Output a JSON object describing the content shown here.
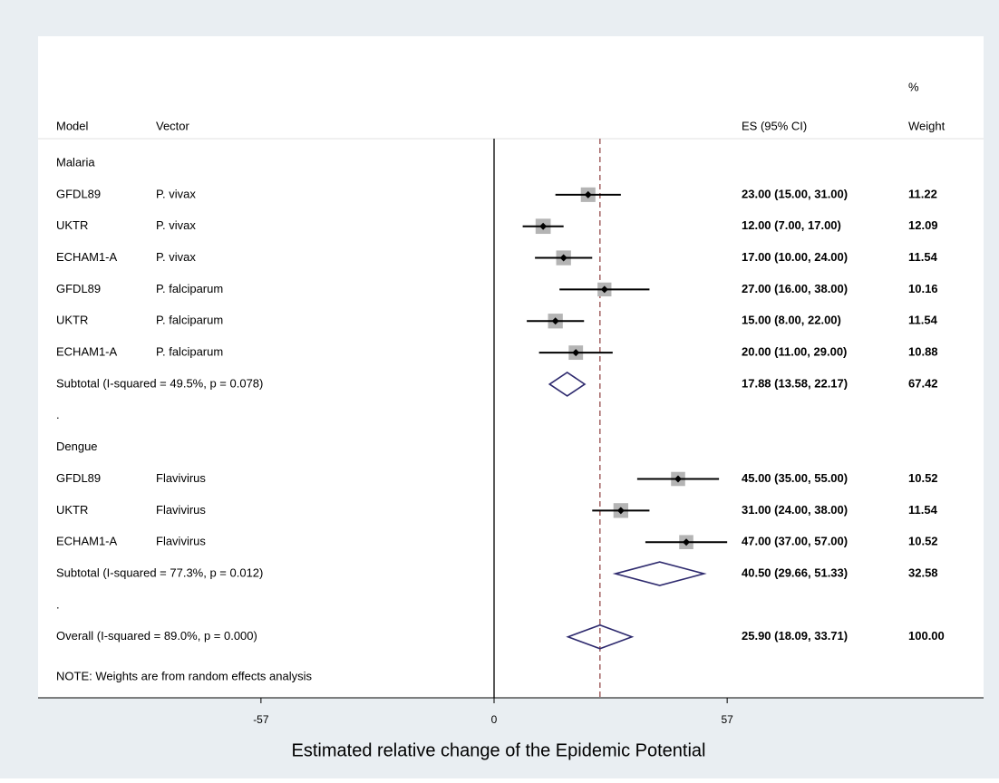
{
  "chart_data": {
    "type": "forest",
    "headers": {
      "model": "Model",
      "vector": "Vector",
      "es": "ES (95% CI)",
      "weight_top": "%",
      "weight": "Weight"
    },
    "groups": [
      {
        "name": "Malaria",
        "studies": [
          {
            "model": "GFDL89",
            "vector": "P. vivax",
            "es": 23,
            "lo": 15,
            "hi": 31,
            "es_label": "23.00 (15.00, 31.00)",
            "weight": 11.22,
            "weight_label": "11.22"
          },
          {
            "model": "UKTR",
            "vector": "P. vivax",
            "es": 12,
            "lo": 7,
            "hi": 17,
            "es_label": "12.00 (7.00, 17.00)",
            "weight": 12.09,
            "weight_label": "12.09"
          },
          {
            "model": "ECHAM1-A",
            "vector": "P. vivax",
            "es": 17,
            "lo": 10,
            "hi": 24,
            "es_label": "17.00 (10.00, 24.00)",
            "weight": 11.54,
            "weight_label": "11.54"
          },
          {
            "model": "GFDL89",
            "vector": "P. falciparum",
            "es": 27,
            "lo": 16,
            "hi": 38,
            "es_label": "27.00 (16.00, 38.00)",
            "weight": 10.16,
            "weight_label": "10.16"
          },
          {
            "model": "UKTR",
            "vector": "P. falciparum",
            "es": 15,
            "lo": 8,
            "hi": 22,
            "es_label": "15.00 (8.00, 22.00)",
            "weight": 11.54,
            "weight_label": "11.54"
          },
          {
            "model": "ECHAM1-A",
            "vector": "P. falciparum",
            "es": 20,
            "lo": 11,
            "hi": 29,
            "es_label": "20.00 (11.00, 29.00)",
            "weight": 10.88,
            "weight_label": "10.88"
          }
        ],
        "subtotal": {
          "label": "Subtotal  (I-squared = 49.5%, p = 0.078)",
          "es": 17.88,
          "lo": 13.58,
          "hi": 22.17,
          "es_label": "17.88 (13.58, 22.17)",
          "weight": 67.42,
          "weight_label": "67.42"
        },
        "separator": "."
      },
      {
        "name": "Dengue",
        "studies": [
          {
            "model": "GFDL89",
            "vector": "Flavivirus",
            "es": 45,
            "lo": 35,
            "hi": 55,
            "es_label": "45.00 (35.00, 55.00)",
            "weight": 10.52,
            "weight_label": "10.52"
          },
          {
            "model": "UKTR",
            "vector": "Flavivirus",
            "es": 31,
            "lo": 24,
            "hi": 38,
            "es_label": "31.00 (24.00, 38.00)",
            "weight": 11.54,
            "weight_label": "11.54"
          },
          {
            "model": "ECHAM1-A",
            "vector": "Flavivirus",
            "es": 47,
            "lo": 37,
            "hi": 57,
            "es_label": "47.00 (37.00, 57.00)",
            "weight": 10.52,
            "weight_label": "10.52"
          }
        ],
        "subtotal": {
          "label": "Subtotal  (I-squared = 77.3%, p = 0.012)",
          "es": 40.5,
          "lo": 29.66,
          "hi": 51.33,
          "es_label": "40.50 (29.66, 51.33)",
          "weight": 32.58,
          "weight_label": "32.58"
        },
        "separator": "."
      }
    ],
    "overall": {
      "label": "Overall  (I-squared = 89.0%, p = 0.000)",
      "es": 25.9,
      "lo": 18.09,
      "hi": 33.71,
      "es_label": "25.90 (18.09, 33.71)",
      "weight": 100,
      "weight_label": "100.00"
    },
    "note": "NOTE: Weights are from random effects analysis",
    "xlabel": "Estimated relative change of the Epidemic Potential",
    "null_line": 0,
    "xlim": [
      -111.5,
      119.7
    ],
    "xticks": [
      -57,
      0,
      57
    ],
    "colors": {
      "square": "#b4b4b4",
      "diamond": "#2e2a6e",
      "ref_line": "#8b3a3a"
    }
  }
}
